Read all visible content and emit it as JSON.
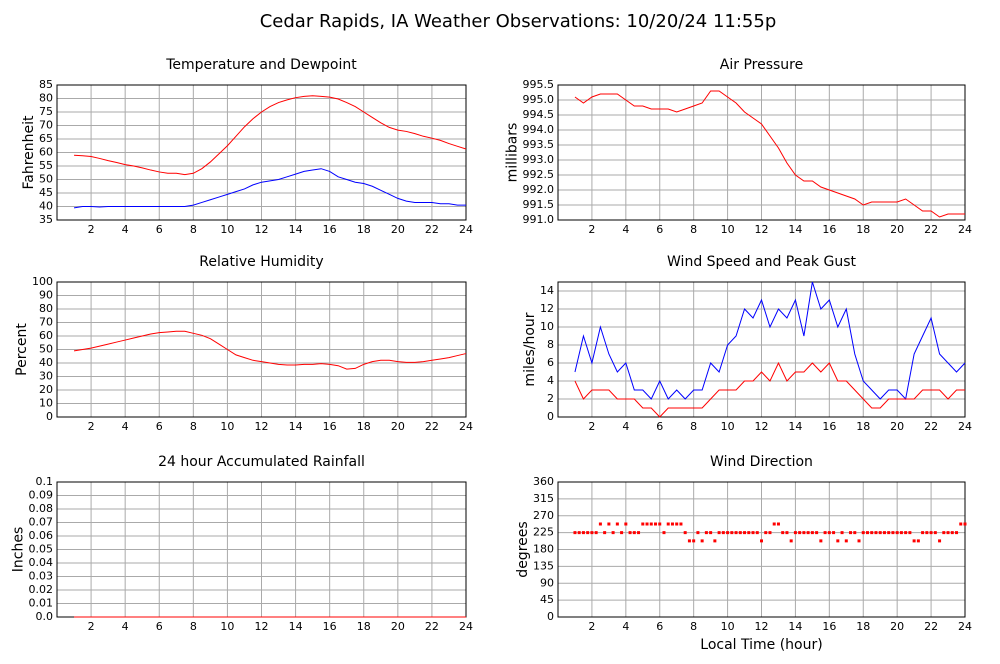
{
  "title": "Cedar Rapids, IA Weather Observations: 10/20/24 11:55p",
  "chart_data": [
    {
      "type": "line",
      "title": "Temperature and Dewpoint",
      "ylabel": "Fahrenheit",
      "x": [
        1,
        1.5,
        2,
        2.5,
        3,
        3.5,
        4,
        4.5,
        5,
        5.5,
        6,
        6.5,
        7,
        7.5,
        8,
        8.5,
        9,
        9.5,
        10,
        10.5,
        11,
        11.5,
        12,
        12.5,
        13,
        13.5,
        14,
        14.5,
        15,
        15.5,
        16,
        16.5,
        17,
        17.5,
        18,
        18.5,
        19,
        19.5,
        20,
        20.5,
        21,
        21.5,
        22,
        22.5,
        23,
        23.5,
        24
      ],
      "series": [
        {
          "color": "#ff0000",
          "values": [
            59,
            58.8,
            58.5,
            57.8,
            57,
            56.3,
            55.5,
            55,
            54.3,
            53.5,
            52.8,
            52.3,
            52.3,
            51.8,
            52.3,
            54,
            56.5,
            59.5,
            62.5,
            66,
            69.5,
            72.5,
            75,
            77,
            78.5,
            79.5,
            80.3,
            80.8,
            81,
            80.8,
            80.5,
            79.8,
            78.5,
            77,
            75,
            73,
            71,
            69.3,
            68.3,
            67.8,
            67,
            66,
            65.3,
            64.5,
            63.3,
            62.3,
            61.3
          ]
        },
        {
          "color": "#0000ff",
          "values": [
            39.5,
            40,
            40,
            39.8,
            40,
            40,
            40,
            40,
            40,
            40,
            40,
            40,
            40,
            40,
            40.5,
            41.5,
            42.5,
            43.5,
            44.5,
            45.5,
            46.5,
            48,
            49,
            49.5,
            50,
            51,
            52,
            53,
            53.5,
            54,
            53,
            51,
            50,
            49,
            48.5,
            47.5,
            46,
            44.5,
            43,
            42,
            41.5,
            41.5,
            41.5,
            41,
            41,
            40.5,
            40.5
          ]
        }
      ],
      "xlim": [
        0,
        24
      ],
      "xticks": [
        2,
        4,
        6,
        8,
        10,
        12,
        14,
        16,
        18,
        20,
        22,
        24
      ],
      "ylim": [
        35,
        85
      ],
      "yticks": [
        35,
        40,
        45,
        50,
        55,
        60,
        65,
        70,
        75,
        80,
        85
      ],
      "grid": true
    },
    {
      "type": "line",
      "title": "Air Pressure",
      "ylabel": "millibars",
      "x": [
        1,
        1.5,
        2,
        2.5,
        3,
        3.5,
        4,
        4.5,
        5,
        5.5,
        6,
        6.5,
        7,
        7.5,
        8,
        8.5,
        9,
        9.5,
        10,
        10.5,
        11,
        11.5,
        12,
        12.5,
        13,
        13.5,
        14,
        14.5,
        15,
        15.5,
        16,
        16.5,
        17,
        17.5,
        18,
        18.5,
        19,
        19.5,
        20,
        20.5,
        21,
        21.5,
        22,
        22.5,
        23,
        23.5,
        24
      ],
      "series": [
        {
          "color": "#ff0000",
          "values": [
            995.1,
            994.9,
            995.1,
            995.2,
            995.2,
            995.2,
            995,
            994.8,
            994.8,
            994.7,
            994.7,
            994.7,
            994.6,
            994.7,
            994.8,
            994.9,
            995.3,
            995.3,
            995.1,
            994.9,
            994.6,
            994.4,
            994.2,
            993.8,
            993.4,
            992.9,
            992.5,
            992.3,
            992.3,
            992.1,
            992,
            991.9,
            991.8,
            991.7,
            991.5,
            991.6,
            991.6,
            991.6,
            991.6,
            991.7,
            991.5,
            991.3,
            991.3,
            991.1,
            991.2,
            991.2,
            991.2
          ]
        }
      ],
      "xlim": [
        0,
        24
      ],
      "xticks": [
        2,
        4,
        6,
        8,
        10,
        12,
        14,
        16,
        18,
        20,
        22,
        24
      ],
      "ylim": [
        991,
        995.5
      ],
      "yticks": [
        {
          "value": 991,
          "label": "991.0"
        },
        991.5,
        {
          "value": 992,
          "label": "992.0"
        },
        992.5,
        {
          "value": 993,
          "label": "993.0"
        },
        993.5,
        {
          "value": 994,
          "label": "994.0"
        },
        994.5,
        {
          "value": 995,
          "label": "995.0"
        },
        995.5
      ],
      "grid": true
    },
    {
      "type": "line",
      "title": "Relative Humidity",
      "ylabel": "Percent",
      "x": [
        1,
        1.5,
        2,
        2.5,
        3,
        3.5,
        4,
        4.5,
        5,
        5.5,
        6,
        6.5,
        7,
        7.5,
        8,
        8.5,
        9,
        9.5,
        10,
        10.5,
        11,
        11.5,
        12,
        12.5,
        13,
        13.5,
        14,
        14.5,
        15,
        15.5,
        16,
        16.5,
        17,
        17.5,
        18,
        18.5,
        19,
        19.5,
        20,
        20.5,
        21,
        21.5,
        22,
        22.5,
        23,
        23.5,
        24
      ],
      "series": [
        {
          "color": "#ff0000",
          "values": [
            49,
            50,
            51,
            52.5,
            54,
            55.5,
            57,
            58.5,
            60,
            61.5,
            62.5,
            63,
            63.5,
            63.5,
            62,
            60.5,
            58,
            54,
            50,
            46,
            44,
            42,
            41,
            40,
            39,
            38.5,
            38.5,
            39,
            39,
            39.5,
            39,
            38,
            35.5,
            36,
            39,
            41,
            42,
            42,
            41,
            40.5,
            40.5,
            41,
            42,
            43,
            44,
            45.5,
            47
          ]
        }
      ],
      "xlim": [
        0,
        24
      ],
      "xticks": [
        2,
        4,
        6,
        8,
        10,
        12,
        14,
        16,
        18,
        20,
        22,
        24
      ],
      "ylim": [
        0,
        100
      ],
      "yticks": [
        0,
        10,
        20,
        30,
        40,
        50,
        60,
        70,
        80,
        90,
        100
      ],
      "grid": true
    },
    {
      "type": "line",
      "title": "Wind Speed and Peak Gust",
      "ylabel": "miles/hour",
      "x": [
        1,
        1.5,
        2,
        2.5,
        3,
        3.5,
        4,
        4.5,
        5,
        5.5,
        6,
        6.5,
        7,
        7.5,
        8,
        8.5,
        9,
        9.5,
        10,
        10.5,
        11,
        11.5,
        12,
        12.5,
        13,
        13.5,
        14,
        14.5,
        15,
        15.5,
        16,
        16.5,
        17,
        17.5,
        18,
        18.5,
        19,
        19.5,
        20,
        20.5,
        21,
        21.5,
        22,
        22.5,
        23,
        23.5,
        24
      ],
      "series": [
        {
          "color": "#0000ff",
          "values": [
            5,
            9,
            6,
            10,
            7,
            5,
            6,
            3,
            3,
            2,
            4,
            2,
            3,
            2,
            3,
            3,
            6,
            5,
            8,
            9,
            12,
            11,
            13,
            10,
            12,
            11,
            13,
            9,
            15,
            12,
            13,
            10,
            12,
            7,
            4,
            3,
            2,
            3,
            3,
            2,
            7,
            9,
            11,
            7,
            6,
            5,
            6
          ]
        },
        {
          "color": "#ff0000",
          "values": [
            4,
            2,
            3,
            3,
            3,
            2,
            2,
            2,
            1,
            1,
            0,
            1,
            1,
            1,
            1,
            1,
            2,
            3,
            3,
            3,
            4,
            4,
            5,
            4,
            6,
            4,
            5,
            5,
            6,
            5,
            6,
            4,
            4,
            3,
            2,
            1,
            1,
            2,
            2,
            2,
            2,
            3,
            3,
            3,
            2,
            3,
            3
          ]
        }
      ],
      "xlim": [
        0,
        24
      ],
      "xticks": [
        2,
        4,
        6,
        8,
        10,
        12,
        14,
        16,
        18,
        20,
        22,
        24
      ],
      "ylim": [
        0,
        15
      ],
      "yticks": [
        0,
        2,
        4,
        6,
        8,
        10,
        12,
        14
      ],
      "grid": true
    },
    {
      "type": "line",
      "title": "24 hour Accumulated Rainfall",
      "ylabel": "Inches",
      "x": [
        1,
        24
      ],
      "series": [
        {
          "color": "#ff0000",
          "values": [
            0,
            0
          ]
        }
      ],
      "xlim": [
        0,
        24
      ],
      "xticks": [
        2,
        4,
        6,
        8,
        10,
        12,
        14,
        16,
        18,
        20,
        22,
        24
      ],
      "ylim": [
        0,
        0.1
      ],
      "yticks": [
        {
          "value": 0,
          "label": "0.0"
        },
        0.01,
        0.02,
        0.03,
        0.04,
        0.05,
        0.06,
        0.07,
        0.08,
        0.09,
        0.1
      ],
      "grid": true
    },
    {
      "type": "scatter",
      "title": "Wind Direction",
      "ylabel": "degrees",
      "xlabel": "Local Time (hour)",
      "x": [
        1,
        1.25,
        1.5,
        1.75,
        2,
        2.25,
        2.5,
        2.75,
        3,
        3.25,
        3.5,
        3.75,
        4,
        4.25,
        4.5,
        4.75,
        5,
        5.25,
        5.5,
        5.75,
        6,
        6.25,
        6.5,
        6.75,
        7,
        7.25,
        7.5,
        7.75,
        8,
        8.25,
        8.5,
        8.75,
        9,
        9.25,
        9.5,
        9.75,
        10,
        10.25,
        10.5,
        10.75,
        11,
        11.25,
        11.5,
        11.75,
        12,
        12.25,
        12.5,
        12.75,
        13,
        13.25,
        13.5,
        13.75,
        14,
        14.25,
        14.5,
        14.75,
        15,
        15.25,
        15.5,
        15.75,
        16,
        16.25,
        16.5,
        16.75,
        17,
        17.25,
        17.5,
        17.75,
        18,
        18.25,
        18.5,
        18.75,
        19,
        19.25,
        19.5,
        19.75,
        20,
        20.25,
        20.5,
        20.75,
        21,
        21.25,
        21.5,
        21.75,
        22,
        22.25,
        22.5,
        22.75,
        23,
        23.25,
        23.5,
        23.75,
        24
      ],
      "values": [
        225,
        225,
        225,
        225,
        225,
        225,
        248,
        225,
        248,
        225,
        248,
        225,
        248,
        225,
        225,
        225,
        248,
        248,
        248,
        248,
        248,
        225,
        248,
        248,
        248,
        248,
        225,
        203,
        203,
        225,
        203,
        225,
        225,
        203,
        225,
        225,
        225,
        225,
        225,
        225,
        225,
        225,
        225,
        225,
        203,
        225,
        225,
        248,
        248,
        225,
        225,
        203,
        225,
        225,
        225,
        225,
        225,
        225,
        203,
        225,
        225,
        225,
        203,
        225,
        203,
        225,
        225,
        203,
        225,
        225,
        225,
        225,
        225,
        225,
        225,
        225,
        225,
        225,
        225,
        225,
        203,
        203,
        225,
        225,
        225,
        225,
        203,
        225,
        225,
        225,
        225,
        248,
        248
      ],
      "color": "#ff0000",
      "xlim": [
        0,
        24
      ],
      "xticks": [
        2,
        4,
        6,
        8,
        10,
        12,
        14,
        16,
        18,
        20,
        22,
        24
      ],
      "ylim": [
        0,
        360
      ],
      "yticks": [
        0,
        45,
        90,
        135,
        180,
        225,
        270,
        315,
        360
      ],
      "grid": true
    }
  ]
}
